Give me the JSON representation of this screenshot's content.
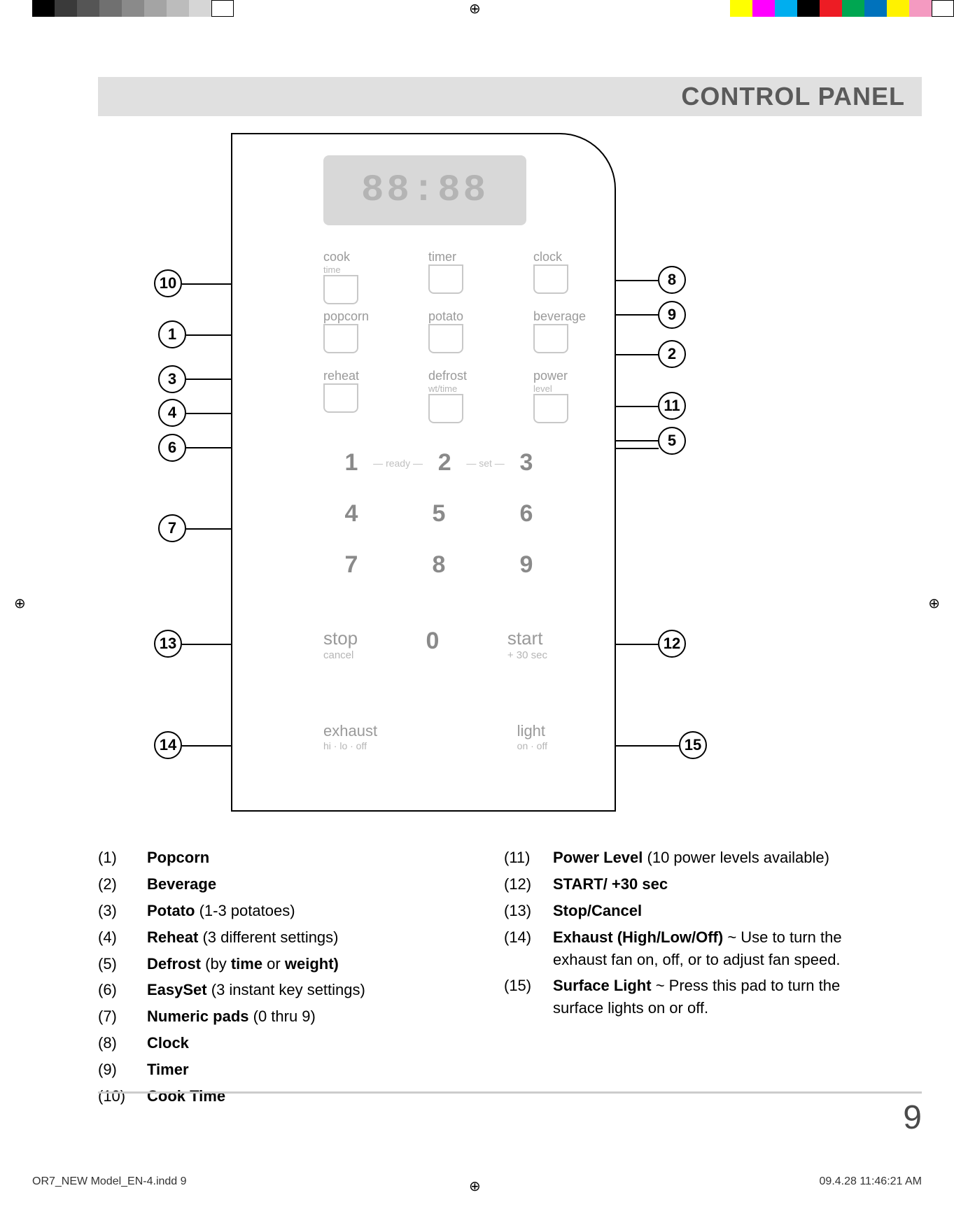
{
  "reg_left_colors": [
    "#000000",
    "#3a3a3a",
    "#555555",
    "#707070",
    "#8a8a8a",
    "#a4a4a4",
    "#bcbcbc",
    "#d6d6d6",
    "#ffffff"
  ],
  "reg_right_colors": [
    "#ffff00",
    "#ff00ff",
    "#00aeef",
    "#000000",
    "#ed1c24",
    "#00a651",
    "#0072bc",
    "#fff200",
    "#f49ac1",
    "#ffffff"
  ],
  "header": {
    "title": "CONTROL PANEL"
  },
  "display": "88:88",
  "fn_row1": [
    {
      "label": "cook",
      "sub": "time"
    },
    {
      "label": "timer",
      "sub": ""
    },
    {
      "label": "clock",
      "sub": ""
    }
  ],
  "fn_row2": [
    {
      "label": "popcorn",
      "sub": ""
    },
    {
      "label": "potato",
      "sub": ""
    },
    {
      "label": "beverage",
      "sub": ""
    }
  ],
  "fn_row3": [
    {
      "label": "reheat",
      "sub": ""
    },
    {
      "label": "defrost",
      "sub": "wt/time"
    },
    {
      "label": "power",
      "sub": "level"
    }
  ],
  "keypad_row1": {
    "n1": "1",
    "w1": "ready",
    "n2": "2",
    "w2": "set",
    "n3": "3"
  },
  "keypad_nums": [
    [
      "4",
      "5",
      "6"
    ],
    [
      "7",
      "8",
      "9"
    ]
  ],
  "ss": {
    "stop": "stop",
    "cancel": "cancel",
    "zero": "0",
    "start": "start",
    "plus30": "+ 30 sec"
  },
  "bottom": {
    "exhaust": "exhaust",
    "exsub": "hi · lo · off",
    "light": "light",
    "lisub": "on · off"
  },
  "anno": {
    "1": "1",
    "2": "2",
    "3": "3",
    "4": "4",
    "5": "5",
    "6": "6",
    "7": "7",
    "8": "8",
    "9": "9",
    "10": "10",
    "11": "11",
    "12": "12",
    "13": "13",
    "14": "14",
    "15": "15"
  },
  "legend_left": [
    {
      "n": "(1)",
      "bold": "Popcorn",
      "rest": ""
    },
    {
      "n": "(2)",
      "bold": "Beverage",
      "rest": ""
    },
    {
      "n": "(3)",
      "bold": "Potato",
      "rest": " (1-3 potatoes)"
    },
    {
      "n": "(4)",
      "bold": "Reheat",
      "rest": " (3 different settings)"
    },
    {
      "n": "(5)",
      "bold": "Defrost",
      "rest": " (by <b>time</b> or <b>weight)</b>"
    },
    {
      "n": "(6)",
      "bold": "EasySet",
      "rest": " (3 instant key settings)"
    },
    {
      "n": "(7)",
      "bold": "Numeric pads",
      "rest": " (0 thru 9)"
    },
    {
      "n": "(8)",
      "bold": "Clock",
      "rest": ""
    },
    {
      "n": "(9)",
      "bold": "Timer",
      "rest": ""
    },
    {
      "n": "(10)",
      "bold": "Cook Time",
      "rest": ""
    }
  ],
  "legend_right": [
    {
      "n": "(11)",
      "bold": "Power Level",
      "rest": " (10 power levels available)"
    },
    {
      "n": "(12)",
      "bold": "START/ +30 sec",
      "rest": ""
    },
    {
      "n": "(13)",
      "bold": "Stop/Cancel",
      "rest": ""
    },
    {
      "n": "(14)",
      "bold": "Exhaust (High/Low/Off)",
      "rest": " ~ Use to turn the exhaust fan on, off, or to adjust fan speed."
    },
    {
      "n": "(15)",
      "bold": "Surface Light",
      "rest": " ~ Press this pad to turn the surface lights on or off."
    }
  ],
  "page_num": "9",
  "footer_left": "OR7_NEW Model_EN-4.indd   9",
  "footer_right": "09.4.28   11:46:21 AM"
}
